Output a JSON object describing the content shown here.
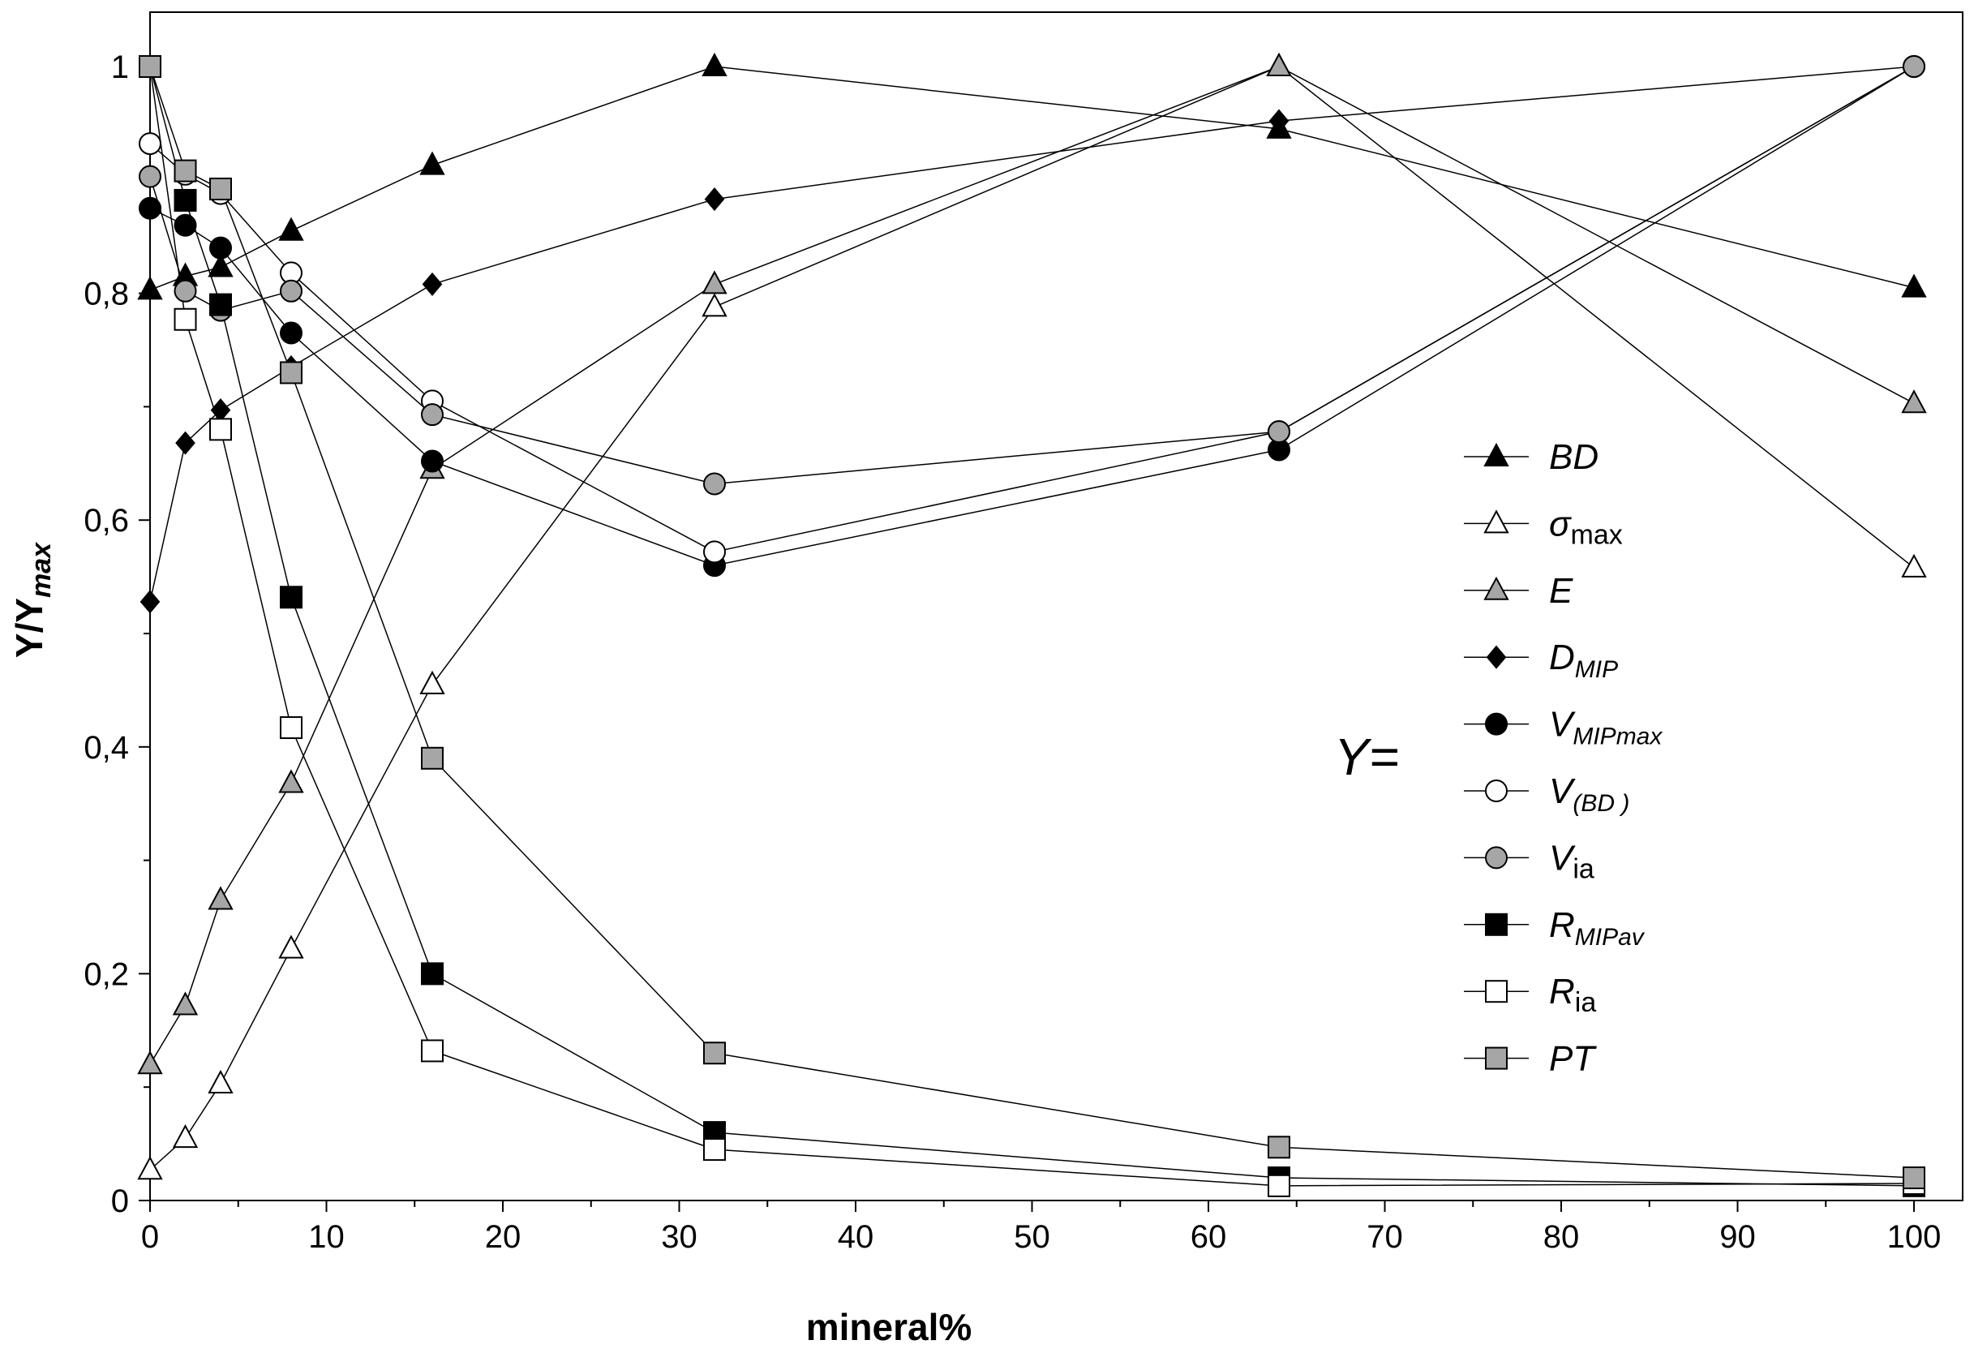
{
  "chart_data": {
    "type": "line",
    "title": "",
    "xlabel": "mineral%",
    "ylabel": {
      "main": "Y/Y",
      "sub": "max"
    },
    "xlim": [
      0,
      100
    ],
    "ylim": [
      0,
      1
    ],
    "xticks": [
      0,
      10,
      20,
      30,
      40,
      50,
      60,
      70,
      80,
      90,
      100
    ],
    "yticks": [
      0,
      0.2,
      0.4,
      0.6,
      0.8,
      1
    ],
    "ytick_labels": [
      "0",
      "0,2",
      "0,4",
      "0,6",
      "0,8",
      "1"
    ],
    "grid": false,
    "legend_title": "Y=",
    "legend_position": "right",
    "series": [
      {
        "id": "BD",
        "name": "BD",
        "sub": "",
        "marker": "triangle",
        "fill": "#000000",
        "x": [
          0,
          2,
          4,
          8,
          16,
          32,
          64,
          100
        ],
        "y": [
          0.803,
          0.815,
          0.823,
          0.855,
          0.913,
          1.0,
          0.945,
          0.805
        ]
      },
      {
        "id": "sigma_max",
        "name": "σ",
        "sub": "max",
        "sub_style": "upright",
        "marker": "triangle",
        "fill": "#ffffff",
        "x": [
          0,
          2,
          4,
          8,
          16,
          32,
          64,
          100
        ],
        "y": [
          0.027,
          0.055,
          0.103,
          0.222,
          0.455,
          0.788,
          1.0,
          0.558
        ]
      },
      {
        "id": "E",
        "name": "E",
        "sub": "",
        "marker": "triangle",
        "fill": "#a6a6a6",
        "x": [
          0,
          2,
          4,
          8,
          16,
          32,
          64,
          100
        ],
        "y": [
          0.12,
          0.172,
          0.265,
          0.368,
          0.645,
          0.808,
          1.0,
          0.703
        ]
      },
      {
        "id": "D_MIP",
        "name": "D",
        "sub": "MIP",
        "marker": "diamond",
        "fill": "#000000",
        "x": [
          0,
          2,
          4,
          8,
          16,
          32,
          64,
          100
        ],
        "y": [
          0.528,
          0.668,
          0.697,
          0.735,
          0.808,
          0.883,
          0.952,
          1.0
        ]
      },
      {
        "id": "V_MIPmax",
        "name": "V",
        "sub": "MIPmax",
        "marker": "circle",
        "fill": "#000000",
        "x": [
          0,
          2,
          4,
          8,
          16,
          32,
          64,
          100
        ],
        "y": [
          0.875,
          0.86,
          0.84,
          0.765,
          0.652,
          0.56,
          0.662,
          1.0
        ]
      },
      {
        "id": "V_BD",
        "name": "V",
        "sub": "(BD )",
        "marker": "circle",
        "fill": "#ffffff",
        "x": [
          0,
          2,
          4,
          8,
          16,
          32,
          64,
          100
        ],
        "y": [
          0.932,
          0.905,
          0.888,
          0.818,
          0.705,
          0.572,
          0.678,
          1.0
        ]
      },
      {
        "id": "V_ia",
        "name": "V",
        "sub": "ia",
        "sub_style": "upright",
        "marker": "circle",
        "fill": "#a6a6a6",
        "x": [
          0,
          2,
          4,
          8,
          16,
          32,
          64,
          100
        ],
        "y": [
          0.903,
          0.802,
          0.785,
          0.802,
          0.693,
          0.632,
          0.678,
          1.0
        ]
      },
      {
        "id": "R_MIPav",
        "name": "R",
        "sub": "MIPav",
        "marker": "square",
        "fill": "#000000",
        "x": [
          0,
          2,
          4,
          8,
          16,
          32,
          64,
          100
        ],
        "y": [
          1.0,
          0.882,
          0.79,
          0.532,
          0.2,
          0.06,
          0.02,
          0.013
        ]
      },
      {
        "id": "R_ia",
        "name": "R",
        "sub": "ia",
        "sub_style": "upright",
        "marker": "square",
        "fill": "#ffffff",
        "x": [
          0,
          2,
          4,
          8,
          16,
          32,
          64,
          100
        ],
        "y": [
          1.0,
          0.777,
          0.68,
          0.417,
          0.132,
          0.045,
          0.013,
          0.015
        ]
      },
      {
        "id": "PT",
        "name": "PT",
        "sub": "",
        "marker": "square",
        "fill": "#a6a6a6",
        "x": [
          0,
          2,
          4,
          8,
          16,
          32,
          64,
          100
        ],
        "y": [
          1.0,
          0.908,
          0.892,
          0.73,
          0.39,
          0.13,
          0.047,
          0.02
        ]
      }
    ]
  }
}
